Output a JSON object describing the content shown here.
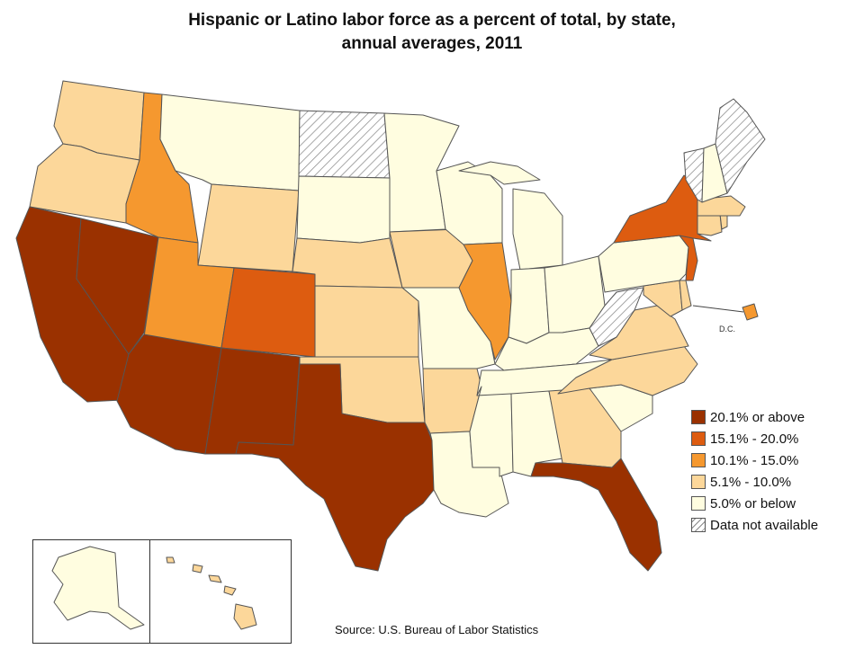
{
  "title_line1": "Hispanic or Latino labor force as a percent of total, by state,",
  "title_line2": "annual averages, 2011",
  "source": "Source:  U.S. Bureau of Labor Statistics",
  "dc_label": "D.C.",
  "colors": {
    "c20plus": "#9a3100",
    "c15_20": "#dd5c10",
    "c10_15": "#f5982f",
    "c5_10": "#fcd79a",
    "c0_5": "#fffde0",
    "na": "#ffffff"
  },
  "legend": [
    {
      "label": "20.1% or above",
      "key": "c20plus"
    },
    {
      "label": "15.1% - 20.0%",
      "key": "c15_20"
    },
    {
      "label": "10.1% - 15.0%",
      "key": "c10_15"
    },
    {
      "label": "5.1% - 10.0%",
      "key": "c5_10"
    },
    {
      "label": "5.0% or below",
      "key": "c0_5"
    },
    {
      "label": "Data not available",
      "key": "na"
    }
  ],
  "states": {
    "WA": "c5_10",
    "OR": "c5_10",
    "CA": "c20plus",
    "NV": "c20plus",
    "ID": "c10_15",
    "MT": "c0_5",
    "WY": "c5_10",
    "UT": "c10_15",
    "AZ": "c20plus",
    "CO": "c15_20",
    "NM": "c20plus",
    "ND": "na",
    "SD": "c0_5",
    "NE": "c5_10",
    "KS": "c5_10",
    "OK": "c5_10",
    "TX": "c20plus",
    "MN": "c0_5",
    "IA": "c5_10",
    "MO": "c0_5",
    "AR": "c5_10",
    "LA": "c0_5",
    "WI": "c0_5",
    "IL": "c10_15",
    "MI": "c0_5",
    "IN": "c0_5",
    "OH": "c0_5",
    "KY": "c0_5",
    "TN": "c0_5",
    "MS": "c0_5",
    "AL": "c0_5",
    "GA": "c5_10",
    "FL": "c20plus",
    "SC": "c0_5",
    "NC": "c5_10",
    "VA": "c5_10",
    "WV": "na",
    "MD": "c5_10",
    "DE": "c5_10",
    "NJ": "c15_20",
    "PA": "c0_5",
    "NY": "c15_20",
    "CT": "c5_10",
    "RI": "c5_10",
    "MA": "c5_10",
    "VT": "na",
    "NH": "c0_5",
    "ME": "na",
    "DC": "c10_15",
    "AK": "c0_5",
    "HI": "c5_10"
  }
}
